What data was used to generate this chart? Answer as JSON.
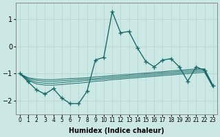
{
  "xlabel": "Humidex (Indice chaleur)",
  "bg_color": "#cbe8e4",
  "grid_color": "#b8d8d2",
  "line_color": "#1a6b6b",
  "x_values": [
    0,
    1,
    2,
    3,
    4,
    5,
    6,
    7,
    8,
    9,
    10,
    11,
    12,
    13,
    14,
    15,
    16,
    17,
    18,
    19,
    20,
    21,
    22,
    23
  ],
  "line_main": [
    -1.0,
    -1.3,
    -1.6,
    -1.75,
    -1.55,
    -1.9,
    -2.1,
    -2.1,
    -1.65,
    -0.5,
    -0.4,
    1.28,
    0.5,
    0.55,
    -0.05,
    -0.55,
    -0.75,
    -0.5,
    -0.45,
    -0.75,
    -1.28,
    -0.75,
    -0.88,
    -1.45
  ],
  "line_env1": [
    -1.0,
    -1.15,
    -1.2,
    -1.22,
    -1.22,
    -1.2,
    -1.18,
    -1.17,
    -1.15,
    -1.12,
    -1.1,
    -1.07,
    -1.05,
    -1.03,
    -1.0,
    -0.98,
    -0.95,
    -0.93,
    -0.9,
    -0.88,
    -0.85,
    -0.83,
    -0.82,
    -1.42
  ],
  "line_env2": [
    -1.0,
    -1.18,
    -1.25,
    -1.28,
    -1.28,
    -1.26,
    -1.24,
    -1.22,
    -1.2,
    -1.18,
    -1.15,
    -1.12,
    -1.1,
    -1.07,
    -1.05,
    -1.02,
    -1.0,
    -0.97,
    -0.95,
    -0.92,
    -0.9,
    -0.87,
    -0.85,
    -1.45
  ],
  "line_env3": [
    -1.0,
    -1.22,
    -1.32,
    -1.35,
    -1.35,
    -1.33,
    -1.3,
    -1.28,
    -1.25,
    -1.22,
    -1.2,
    -1.17,
    -1.15,
    -1.12,
    -1.1,
    -1.07,
    -1.05,
    -1.02,
    -1.0,
    -0.97,
    -0.95,
    -0.92,
    -0.9,
    -1.48
  ],
  "line_env4": [
    -1.0,
    -1.25,
    -1.38,
    -1.42,
    -1.42,
    -1.4,
    -1.37,
    -1.35,
    -1.32,
    -1.28,
    -1.26,
    -1.22,
    -1.2,
    -1.17,
    -1.15,
    -1.12,
    -1.1,
    -1.07,
    -1.05,
    -1.02,
    -1.0,
    -0.97,
    -0.95,
    -1.5
  ],
  "ylim": [
    -2.5,
    1.6
  ],
  "yticks": [
    -2,
    -1,
    0,
    1
  ],
  "xlim": [
    -0.5,
    23.5
  ]
}
